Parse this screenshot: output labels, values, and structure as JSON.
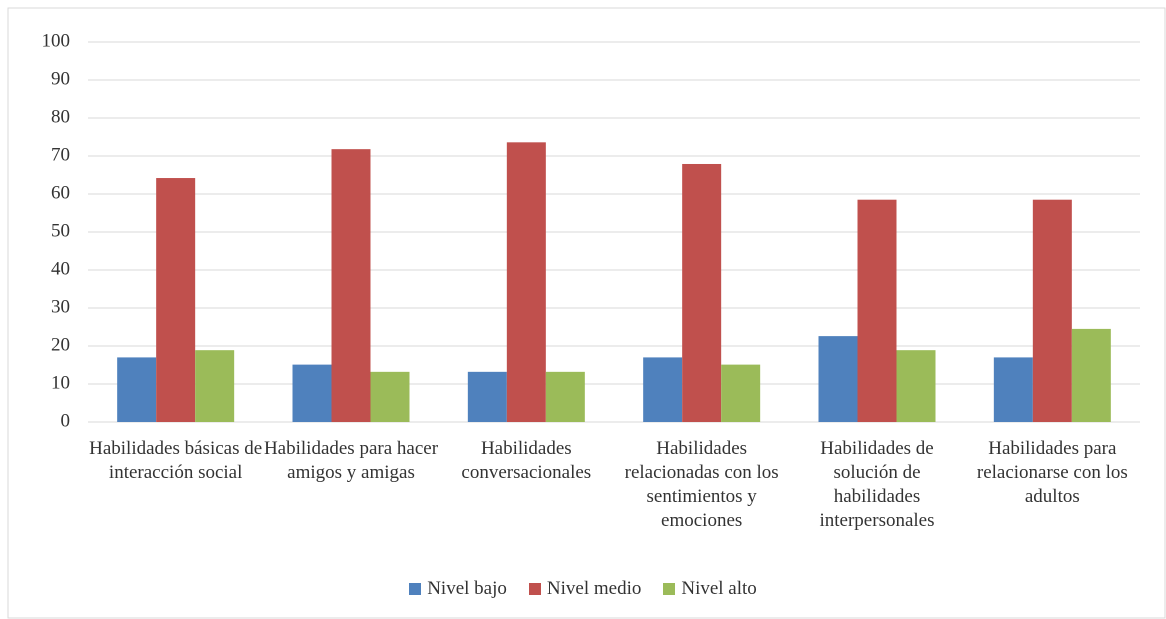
{
  "chart_data": {
    "type": "bar",
    "categories": [
      "Habilidades básicas de interacción social",
      "Habilidades para hacer amigos y amigas",
      "Habilidades conversacionales",
      "Habilidades relacionadas con los sentimientos y emociones",
      "Habilidades de solución de habilidades interpersonales",
      "Habilidades para relacionarse con los adultos"
    ],
    "series": [
      {
        "name": "Nivel bajo",
        "color": "#4f81bd",
        "values": [
          17,
          15.1,
          13.2,
          17,
          22.6,
          17
        ]
      },
      {
        "name": "Nivel medio",
        "color": "#c0504d",
        "values": [
          64.2,
          71.8,
          73.6,
          67.9,
          58.5,
          58.5
        ]
      },
      {
        "name": "Nivel alto",
        "color": "#9bbb59",
        "values": [
          18.9,
          13.2,
          13.2,
          15.1,
          18.9,
          24.5
        ]
      }
    ],
    "ylim": [
      0,
      100
    ],
    "yticks": [
      0,
      10,
      20,
      30,
      40,
      50,
      60,
      70,
      80,
      90,
      100
    ],
    "grid": true,
    "legend": "bottom"
  }
}
